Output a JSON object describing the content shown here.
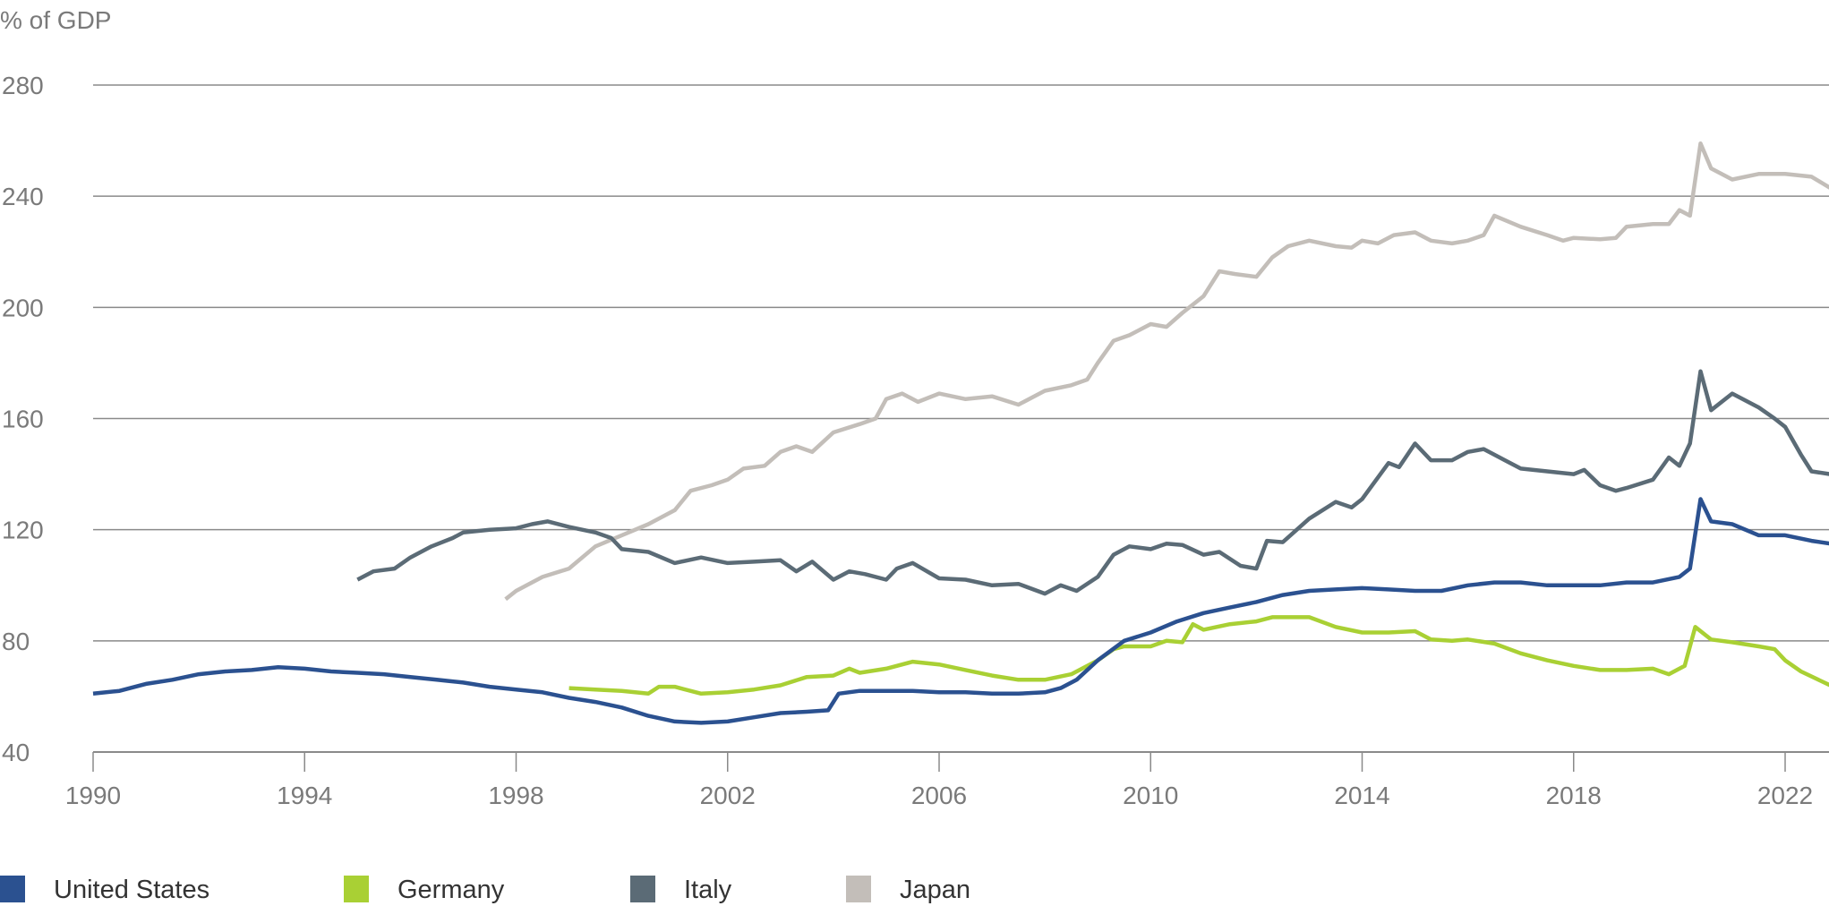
{
  "chart_data": {
    "type": "line",
    "title": "",
    "ylabel": "% of GDP",
    "xlabel": "",
    "ylim": [
      40,
      280
    ],
    "xlim": [
      1990,
      2022.85
    ],
    "yticks": [
      "280",
      "240",
      "200",
      "160",
      "120",
      "80",
      "40"
    ],
    "xticks": [
      "1990",
      "1994",
      "1998",
      "2002",
      "2006",
      "2010",
      "2014",
      "2018",
      "2022"
    ],
    "grid": "horizontal",
    "legend_position": "bottom",
    "series": [
      {
        "name": "United States",
        "color": "#2b5190",
        "points": [
          [
            1990,
            61
          ],
          [
            1990.5,
            62
          ],
          [
            1991,
            64.5
          ],
          [
            1991.5,
            66
          ],
          [
            1992,
            68
          ],
          [
            1992.5,
            69
          ],
          [
            1993,
            69.5
          ],
          [
            1993.5,
            70.5
          ],
          [
            1994,
            70
          ],
          [
            1994.5,
            69
          ],
          [
            1995,
            68.5
          ],
          [
            1995.5,
            68
          ],
          [
            1996,
            67
          ],
          [
            1996.5,
            66
          ],
          [
            1997,
            65
          ],
          [
            1997.5,
            63.5
          ],
          [
            1998,
            62.5
          ],
          [
            1998.5,
            61.5
          ],
          [
            1999,
            59.5
          ],
          [
            1999.5,
            58
          ],
          [
            2000,
            56
          ],
          [
            2000.5,
            53
          ],
          [
            2001,
            51
          ],
          [
            2001.5,
            50.5
          ],
          [
            2002,
            51
          ],
          [
            2002.5,
            52.5
          ],
          [
            2003,
            54
          ],
          [
            2003.5,
            54.5
          ],
          [
            2003.9,
            55
          ],
          [
            2004.1,
            61
          ],
          [
            2004.5,
            62
          ],
          [
            2005,
            62
          ],
          [
            2005.5,
            62
          ],
          [
            2006,
            61.5
          ],
          [
            2006.5,
            61.5
          ],
          [
            2007,
            61
          ],
          [
            2007.5,
            61
          ],
          [
            2008,
            61.5
          ],
          [
            2008.3,
            63
          ],
          [
            2008.6,
            66
          ],
          [
            2009,
            73
          ],
          [
            2009.5,
            80
          ],
          [
            2010,
            83
          ],
          [
            2010.5,
            87
          ],
          [
            2011,
            90
          ],
          [
            2011.5,
            92
          ],
          [
            2012,
            94
          ],
          [
            2012.5,
            96.5
          ],
          [
            2013,
            98
          ],
          [
            2013.5,
            98.5
          ],
          [
            2014,
            99
          ],
          [
            2014.5,
            98.5
          ],
          [
            2015,
            98
          ],
          [
            2015.5,
            98
          ],
          [
            2016,
            100
          ],
          [
            2016.5,
            101
          ],
          [
            2017,
            101
          ],
          [
            2017.5,
            100
          ],
          [
            2018,
            100
          ],
          [
            2018.5,
            100
          ],
          [
            2019,
            101
          ],
          [
            2019.5,
            101
          ],
          [
            2020,
            103
          ],
          [
            2020.2,
            106
          ],
          [
            2020.4,
            131
          ],
          [
            2020.6,
            123
          ],
          [
            2021,
            122
          ],
          [
            2021.5,
            118
          ],
          [
            2022,
            118
          ],
          [
            2022.5,
            116
          ],
          [
            2022.85,
            115
          ]
        ]
      },
      {
        "name": "Germany",
        "color": "#a9d034",
        "points": [
          [
            1999,
            63
          ],
          [
            1999.5,
            62.5
          ],
          [
            2000,
            62
          ],
          [
            2000.5,
            61
          ],
          [
            2000.7,
            63.5
          ],
          [
            2001,
            63.5
          ],
          [
            2001.5,
            61
          ],
          [
            2002,
            61.5
          ],
          [
            2002.5,
            62.5
          ],
          [
            2003,
            64
          ],
          [
            2003.5,
            67
          ],
          [
            2004,
            67.5
          ],
          [
            2004.3,
            70
          ],
          [
            2004.5,
            68.5
          ],
          [
            2005,
            70
          ],
          [
            2005.5,
            72.5
          ],
          [
            2006,
            71.5
          ],
          [
            2006.5,
            69.5
          ],
          [
            2007,
            67.5
          ],
          [
            2007.5,
            66
          ],
          [
            2008,
            66
          ],
          [
            2008.5,
            68
          ],
          [
            2009,
            73
          ],
          [
            2009.3,
            77
          ],
          [
            2009.5,
            78
          ],
          [
            2010,
            78
          ],
          [
            2010.3,
            80
          ],
          [
            2010.6,
            79.5
          ],
          [
            2010.8,
            86
          ],
          [
            2011,
            84
          ],
          [
            2011.5,
            86
          ],
          [
            2012,
            87
          ],
          [
            2012.3,
            88.5
          ],
          [
            2012.5,
            88.5
          ],
          [
            2013,
            88.5
          ],
          [
            2013.5,
            85
          ],
          [
            2014,
            83
          ],
          [
            2014.5,
            83
          ],
          [
            2015,
            83.5
          ],
          [
            2015.3,
            80.5
          ],
          [
            2015.7,
            80
          ],
          [
            2016,
            80.5
          ],
          [
            2016.5,
            79
          ],
          [
            2017,
            75.5
          ],
          [
            2017.5,
            73
          ],
          [
            2018,
            71
          ],
          [
            2018.5,
            69.5
          ],
          [
            2019,
            69.5
          ],
          [
            2019.5,
            70
          ],
          [
            2019.8,
            68
          ],
          [
            2020.1,
            71
          ],
          [
            2020.3,
            85
          ],
          [
            2020.6,
            80.5
          ],
          [
            2021,
            79.5
          ],
          [
            2021.5,
            78
          ],
          [
            2021.8,
            77
          ],
          [
            2022,
            73
          ],
          [
            2022.3,
            69
          ],
          [
            2022.85,
            64
          ]
        ]
      },
      {
        "name": "Italy",
        "color": "#5b6b76",
        "points": [
          [
            1995,
            102
          ],
          [
            1995.3,
            105
          ],
          [
            1995.7,
            106
          ],
          [
            1996,
            110
          ],
          [
            1996.4,
            114
          ],
          [
            1996.8,
            117
          ],
          [
            1997,
            119
          ],
          [
            1997.5,
            120
          ],
          [
            1998,
            120.5
          ],
          [
            1998.3,
            122
          ],
          [
            1998.6,
            123
          ],
          [
            1999,
            121
          ],
          [
            1999.5,
            119
          ],
          [
            1999.8,
            117
          ],
          [
            2000,
            113
          ],
          [
            2000.5,
            112
          ],
          [
            2001,
            108
          ],
          [
            2001.5,
            110
          ],
          [
            2002,
            108
          ],
          [
            2002.5,
            108.5
          ],
          [
            2003,
            109
          ],
          [
            2003.3,
            105
          ],
          [
            2003.6,
            108.5
          ],
          [
            2004,
            102
          ],
          [
            2004.3,
            105
          ],
          [
            2004.6,
            104
          ],
          [
            2005,
            102
          ],
          [
            2005.2,
            106
          ],
          [
            2005.5,
            108
          ],
          [
            2006,
            102.5
          ],
          [
            2006.5,
            102
          ],
          [
            2007,
            100
          ],
          [
            2007.5,
            100.5
          ],
          [
            2008,
            97
          ],
          [
            2008.3,
            100
          ],
          [
            2008.6,
            98
          ],
          [
            2009,
            103
          ],
          [
            2009.3,
            111
          ],
          [
            2009.6,
            114
          ],
          [
            2010,
            113
          ],
          [
            2010.3,
            115
          ],
          [
            2010.6,
            114.5
          ],
          [
            2011,
            111
          ],
          [
            2011.3,
            112
          ],
          [
            2011.7,
            107
          ],
          [
            2012,
            106
          ],
          [
            2012.2,
            116
          ],
          [
            2012.5,
            115.5
          ],
          [
            2013,
            124
          ],
          [
            2013.5,
            130
          ],
          [
            2013.8,
            128
          ],
          [
            2014,
            131
          ],
          [
            2014.5,
            144
          ],
          [
            2014.7,
            142.5
          ],
          [
            2015,
            151
          ],
          [
            2015.3,
            145
          ],
          [
            2015.7,
            145
          ],
          [
            2016,
            148
          ],
          [
            2016.3,
            149
          ],
          [
            2016.7,
            145
          ],
          [
            2017,
            142
          ],
          [
            2017.5,
            141
          ],
          [
            2018,
            140
          ],
          [
            2018.2,
            141.5
          ],
          [
            2018.5,
            136
          ],
          [
            2018.8,
            134
          ],
          [
            2019,
            135
          ],
          [
            2019.5,
            138
          ],
          [
            2019.8,
            146
          ],
          [
            2020,
            143
          ],
          [
            2020.2,
            151
          ],
          [
            2020.4,
            177
          ],
          [
            2020.6,
            163
          ],
          [
            2021,
            169
          ],
          [
            2021.5,
            164
          ],
          [
            2021.8,
            160
          ],
          [
            2022,
            157
          ],
          [
            2022.3,
            147
          ],
          [
            2022.5,
            141
          ],
          [
            2022.85,
            140
          ]
        ]
      },
      {
        "name": "Japan",
        "color": "#c3beb9",
        "points": [
          [
            1997.8,
            95
          ],
          [
            1998,
            98
          ],
          [
            1998.5,
            103
          ],
          [
            1999,
            106
          ],
          [
            1999.5,
            114
          ],
          [
            2000,
            118
          ],
          [
            2000.5,
            122
          ],
          [
            2001,
            127
          ],
          [
            2001.3,
            134
          ],
          [
            2001.7,
            136
          ],
          [
            2002,
            138
          ],
          [
            2002.3,
            142
          ],
          [
            2002.7,
            143
          ],
          [
            2003,
            148
          ],
          [
            2003.3,
            150
          ],
          [
            2003.6,
            148
          ],
          [
            2004,
            155
          ],
          [
            2004.5,
            158
          ],
          [
            2004.8,
            160
          ],
          [
            2005,
            167
          ],
          [
            2005.3,
            169
          ],
          [
            2005.6,
            166
          ],
          [
            2006,
            169
          ],
          [
            2006.5,
            167
          ],
          [
            2007,
            168
          ],
          [
            2007.5,
            165
          ],
          [
            2008,
            170
          ],
          [
            2008.5,
            172
          ],
          [
            2008.8,
            174
          ],
          [
            2009,
            180
          ],
          [
            2009.3,
            188
          ],
          [
            2009.6,
            190
          ],
          [
            2010,
            194
          ],
          [
            2010.3,
            193
          ],
          [
            2010.6,
            198
          ],
          [
            2011,
            204
          ],
          [
            2011.3,
            213
          ],
          [
            2011.6,
            212
          ],
          [
            2012,
            211
          ],
          [
            2012.3,
            218
          ],
          [
            2012.6,
            222
          ],
          [
            2013,
            224
          ],
          [
            2013.5,
            222
          ],
          [
            2013.8,
            221.5
          ],
          [
            2014,
            224
          ],
          [
            2014.3,
            223
          ],
          [
            2014.6,
            226
          ],
          [
            2015,
            227
          ],
          [
            2015.3,
            224
          ],
          [
            2015.7,
            223
          ],
          [
            2016,
            224
          ],
          [
            2016.3,
            226
          ],
          [
            2016.5,
            233
          ],
          [
            2017,
            229
          ],
          [
            2017.5,
            226
          ],
          [
            2017.8,
            224
          ],
          [
            2018,
            225
          ],
          [
            2018.5,
            224.5
          ],
          [
            2018.8,
            225
          ],
          [
            2019,
            229
          ],
          [
            2019.5,
            230
          ],
          [
            2019.8,
            230
          ],
          [
            2020,
            235
          ],
          [
            2020.2,
            233
          ],
          [
            2020.4,
            259
          ],
          [
            2020.6,
            250
          ],
          [
            2021,
            246
          ],
          [
            2021.5,
            248
          ],
          [
            2022,
            248
          ],
          [
            2022.5,
            247
          ],
          [
            2022.85,
            243
          ]
        ]
      }
    ]
  }
}
